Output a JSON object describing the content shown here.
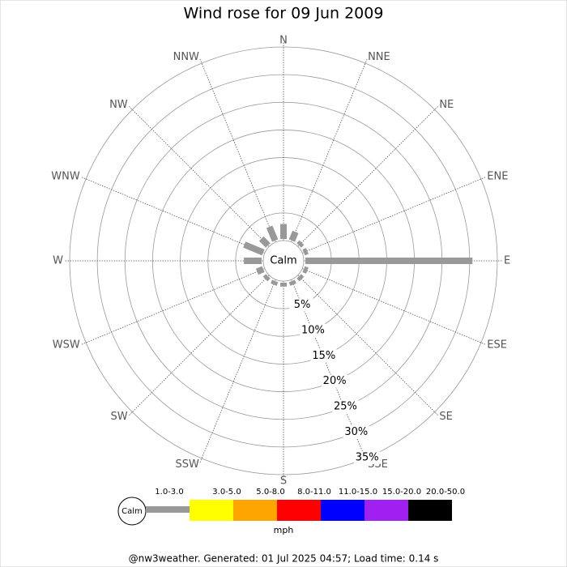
{
  "chart_data": {
    "type": "windrose",
    "title": "Wind rose for 09 Jun 2009",
    "categories": [
      "N",
      "NNE",
      "NE",
      "ENE",
      "E",
      "ESE",
      "SE",
      "SSE",
      "S",
      "SSW",
      "SW",
      "WSW",
      "W",
      "WNW",
      "NW",
      "NNW"
    ],
    "values": [
      3,
      2,
      1,
      1,
      30.5,
      1,
      1,
      1,
      1,
      1,
      1,
      1.5,
      3.5,
      4,
      2,
      3
    ],
    "color": "#999999",
    "rlim": [
      0,
      35
    ],
    "rticks": [
      {
        "value": 5,
        "label": "5%"
      },
      {
        "value": 10,
        "label": "10%"
      },
      {
        "value": 15,
        "label": "15%"
      },
      {
        "value": 20,
        "label": "20%"
      },
      {
        "value": 25,
        "label": "25%"
      },
      {
        "value": 30,
        "label": "30%"
      },
      {
        "value": 35,
        "label": "35%"
      }
    ],
    "calm_label": "Calm",
    "legend": [
      {
        "label": "1.0-3.0",
        "color": "#999999"
      },
      {
        "label": "3.0-5.0",
        "color": "#ffff00"
      },
      {
        "label": "5.0-8.0",
        "color": "#ffa500"
      },
      {
        "label": "8.0-11.0",
        "color": "#ff0000"
      },
      {
        "label": "11.0-15.0",
        "color": "#0000ff"
      },
      {
        "label": "15.0-20.0",
        "color": "#a020f0"
      },
      {
        "label": "20.0-50.0",
        "color": "#000000"
      }
    ],
    "unit": "mph",
    "footer": "@nw3weather. Generated: 01 Jul 2025 04:57; Load time: 0.14 s"
  }
}
